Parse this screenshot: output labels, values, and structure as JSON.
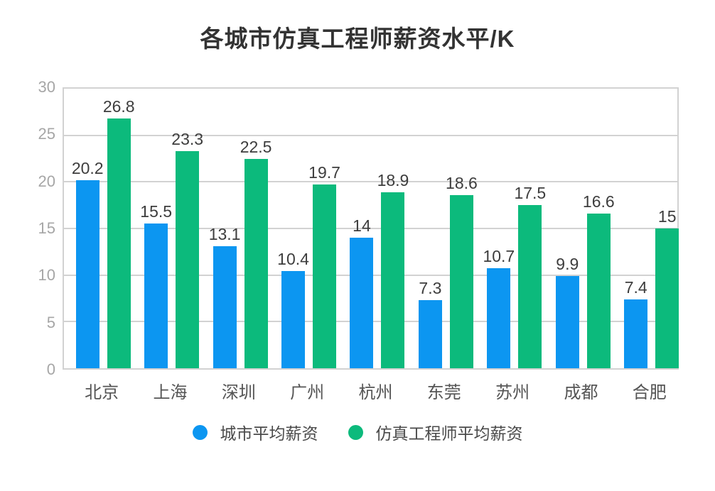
{
  "title": "各城市仿真工程师薪资水平/K",
  "chart_data": {
    "type": "bar",
    "title": "各城市仿真工程师薪资水平/K",
    "categories": [
      "北京",
      "上海",
      "深圳",
      "广州",
      "杭州",
      "东莞",
      "苏州",
      "成都",
      "合肥"
    ],
    "series": [
      {
        "name": "城市平均薪资",
        "color": "#0c96f1",
        "values": [
          20.2,
          15.5,
          13.1,
          10.4,
          14,
          7.3,
          10.7,
          9.9,
          7.4
        ]
      },
      {
        "name": "仿真工程师平均薪资",
        "color": "#0cba7c",
        "values": [
          26.8,
          23.3,
          22.5,
          19.7,
          18.9,
          18.6,
          17.5,
          16.6,
          15
        ]
      }
    ],
    "xlabel": "",
    "ylabel": "",
    "ylim": [
      0,
      30
    ],
    "yticks": [
      0,
      5,
      10,
      15,
      20,
      25,
      30
    ],
    "grid": true,
    "legend_position": "bottom",
    "colors": {
      "grid": "#d2d2d2",
      "ytick_text": "#a6a6a6",
      "value_text": "#3d3d3d",
      "title_text": "#333333"
    }
  }
}
